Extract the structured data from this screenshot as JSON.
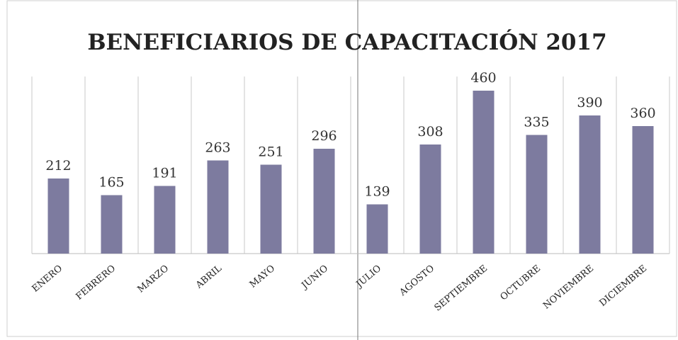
{
  "chart_data": {
    "type": "bar",
    "title": "BENEFICIARIOS DE CAPACITACIÓN 2017",
    "categories": [
      "ENERO",
      "FEBRERO",
      "MARZO",
      "ABRIL",
      "MAYO",
      "JUNIO",
      "JULIO",
      "AGOSTO",
      "SEPTIEMBRE",
      "OCTUBRE",
      "NOVIEMBRE",
      "DICIEMBRE"
    ],
    "values": [
      212,
      165,
      191,
      263,
      251,
      296,
      139,
      308,
      460,
      335,
      390,
      360
    ],
    "color": "#7d7b9f",
    "ylim": [
      0,
      500
    ],
    "grid": true
  }
}
